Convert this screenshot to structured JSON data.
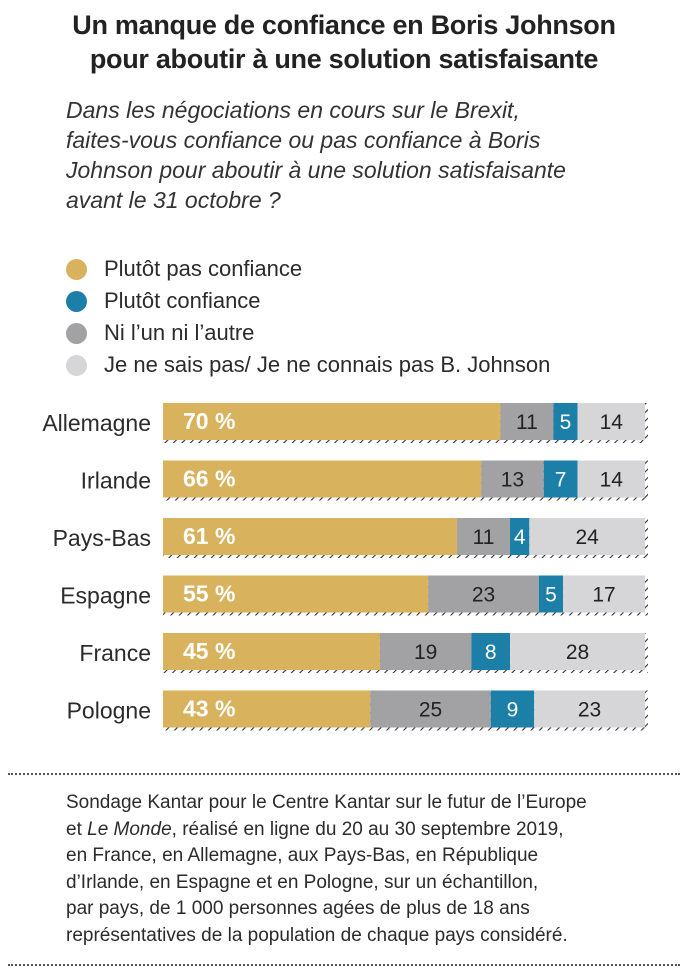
{
  "title_lines": [
    "Un manque de confiance en Boris Johnson",
    "pour aboutir à une solution satisfaisante"
  ],
  "question_lines": [
    "Dans les négociations en cours sur le Brexit,",
    "faites-vous confiance ou pas confiance à Boris",
    "Johnson pour aboutir à une solution satisfaisante",
    "avant le 31 octobre ?"
  ],
  "legend": [
    {
      "label": "Plutôt pas confiance",
      "color": "#d9b25e"
    },
    {
      "label": "Plutôt confiance",
      "color": "#1b7fa8"
    },
    {
      "label": "Ni l’un ni l’autre",
      "color": "#a2a2a4"
    },
    {
      "label": "Je ne sais pas/ Je ne connais pas B. Johnson",
      "color": "#d6d6d8"
    }
  ],
  "chart_data": {
    "type": "bar",
    "orientation": "horizontal",
    "stacked": true,
    "percent_suffix_first": " %",
    "categories": [
      "Allemagne",
      "Irlande",
      "Pays-Bas",
      "Espagne",
      "France",
      "Pologne"
    ],
    "series": [
      {
        "name": "Plutôt pas confiance",
        "color": "#d9b25e",
        "values": [
          70,
          66,
          61,
          55,
          45,
          43
        ]
      },
      {
        "name": "Ni l’un ni l’autre",
        "color": "#a2a2a4",
        "values": [
          11,
          13,
          11,
          23,
          19,
          25
        ]
      },
      {
        "name": "Plutôt confiance",
        "color": "#1b7fa8",
        "values": [
          5,
          7,
          4,
          5,
          8,
          9
        ]
      },
      {
        "name": "Je ne sais pas/ Je ne connais pas B. Johnson",
        "color": "#d6d6d8",
        "values": [
          14,
          14,
          24,
          17,
          28,
          23
        ]
      }
    ],
    "xlim": [
      0,
      100
    ],
    "grid": false
  },
  "source": {
    "line1": "Sondage Kantar pour le Centre Kantar sur le futur de l’Europe",
    "line2_pre": "et ",
    "line2_em": "Le Monde",
    "line2_post": ", réalisé en ligne du 20 au 30 septembre 2019,",
    "line3": "en France, en Allemagne, aux Pays-Bas, en République",
    "line4": "d’Irlande, en Espagne et en Pologne, sur un échantillon,",
    "line5": "par pays, de 1 000 personnes agées de plus de 18 ans",
    "line6": "représentatives de la population de chaque pays considéré."
  }
}
